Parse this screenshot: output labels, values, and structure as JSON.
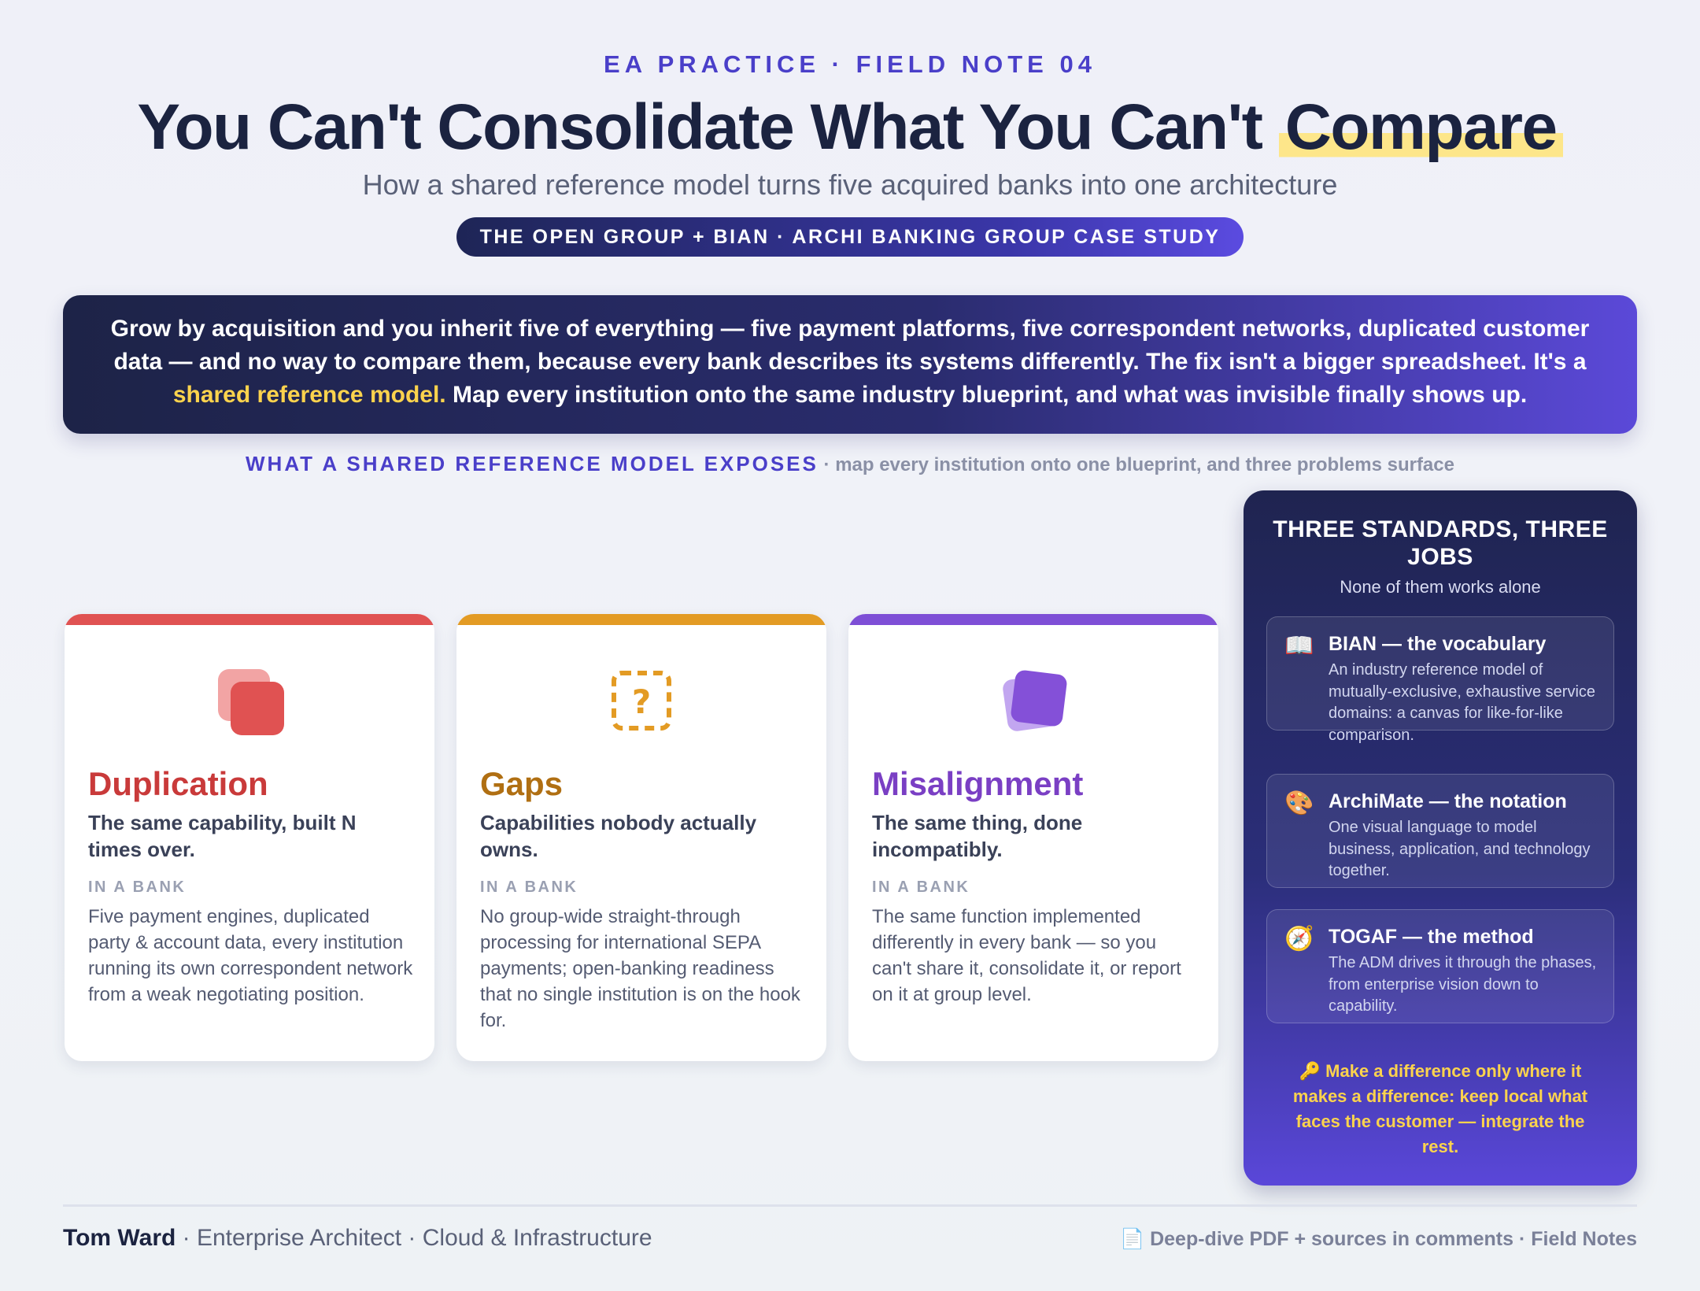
{
  "header": {
    "kicker": "EA PRACTICE · FIELD NOTE 04",
    "title_main": "You Can't Consolidate What You Can't ",
    "title_highlight": "Compare",
    "subtitle": "How a shared reference model turns five acquired banks into one architecture",
    "pill": "THE OPEN GROUP + BIAN · ARCHI BANKING GROUP CASE STUDY"
  },
  "intro": {
    "text_before": "Grow by acquisition and you inherit five of everything — five payment platforms, five correspondent networks, duplicated customer data — and no way to compare them, because every bank describes its systems differently. The fix isn't a bigger spreadsheet. It's a ",
    "highlight": "shared reference model.",
    "text_after": " Map every institution onto the same industry blueprint, and what was invisible finally shows up."
  },
  "section": {
    "lead": "WHAT A SHARED REFERENCE MODEL EXPOSES",
    "tail": " · map every institution onto one blueprint, and three problems surface"
  },
  "cards": [
    {
      "icon": "duplicate-squares-icon",
      "title": "Duplication",
      "lead": "The same capability, built N times over.",
      "tag": "IN A BANK",
      "body": "Five payment engines, duplicated party & account data, every institution running its own correspondent network from a weak negotiating position.",
      "color": "#e05252"
    },
    {
      "icon": "question-box-icon",
      "title": "Gaps",
      "lead": "Capabilities nobody actually owns.",
      "tag": "IN A BANK",
      "body": "No group-wide straight-through processing for international SEPA payments; open-banking readiness that no single institution is on the hook for.",
      "color": "#e39b24"
    },
    {
      "icon": "misaligned-squares-icon",
      "title": "Misalignment",
      "lead": "The same thing, done incompatibly.",
      "tag": "IN A BANK",
      "body": "The same function implemented differently in every bank — so you can't share it, consolidate it, or report on it at group level.",
      "color": "#7e4fd6"
    }
  ],
  "side": {
    "title": "THREE STANDARDS, THREE JOBS",
    "subtitle": "None of them works alone",
    "standards": [
      {
        "icon": "book-icon",
        "glyph": "📖",
        "name": "BIAN — the vocabulary",
        "desc": "An industry reference model of mutually-exclusive, exhaustive service domains: a canvas for like-for-like comparison."
      },
      {
        "icon": "palette-icon",
        "glyph": "🎨",
        "name": "ArchiMate — the notation",
        "desc": "One visual language to model business, application, and technology together."
      },
      {
        "icon": "compass-icon",
        "glyph": "🧭",
        "name": "TOGAF — the method",
        "desc": "The ADM drives it through the phases, from enterprise vision down to capability."
      }
    ],
    "motto": "🔑 Make a difference only where it makes a difference: keep local what faces the customer — integrate the rest."
  },
  "footer": {
    "author": "Tom Ward",
    "role": " · Enterprise Architect · Cloud & Infrastructure",
    "right": "📄 Deep-dive PDF + sources in comments · Field Notes"
  }
}
